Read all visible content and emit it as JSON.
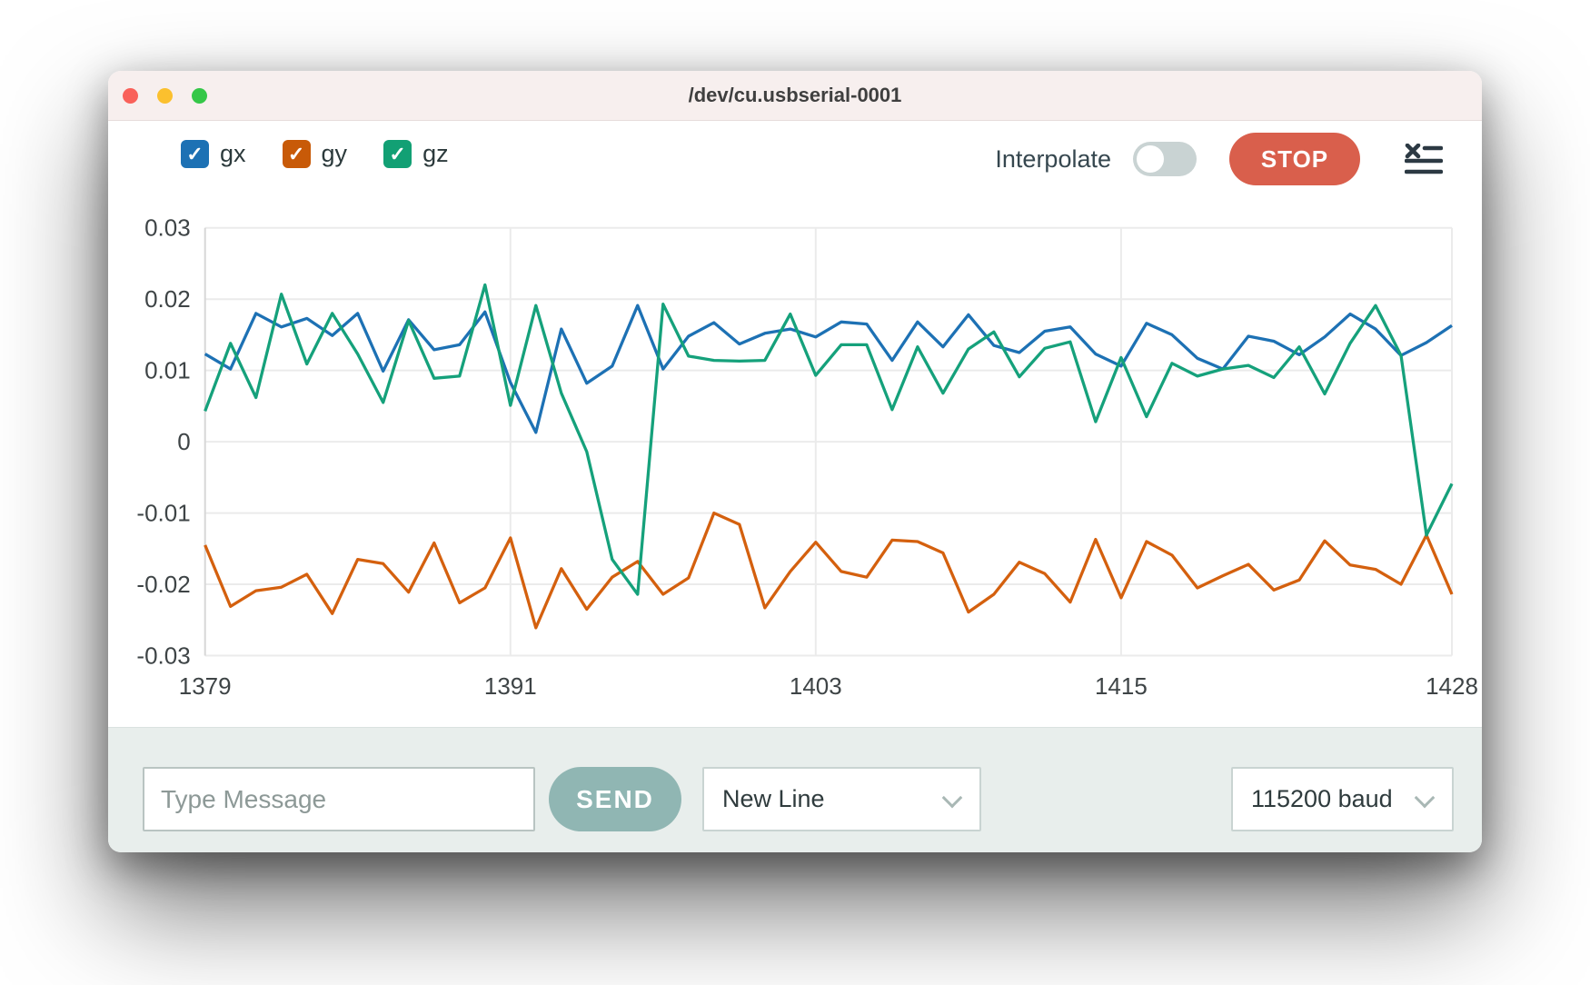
{
  "window": {
    "title": "/dev/cu.usbserial-0001",
    "traffic_lights": [
      {
        "name": "close",
        "color": "#f9615a"
      },
      {
        "name": "minimize",
        "color": "#fbc02e"
      },
      {
        "name": "zoom",
        "color": "#35c748"
      }
    ],
    "titlebar_color": "#f7efee"
  },
  "icons": {
    "check": "✓"
  },
  "legend": {
    "items": [
      {
        "label": "gx",
        "checked": true,
        "color": "#1d71b4"
      },
      {
        "label": "gy",
        "checked": true,
        "color": "#c85a08"
      },
      {
        "label": "gz",
        "checked": true,
        "color": "#12a074"
      }
    ]
  },
  "controls": {
    "interpolate_label": "Interpolate",
    "interpolate_state": "off",
    "stop_label": "STOP"
  },
  "chart_data": {
    "type": "line",
    "title": "",
    "xlabel": "",
    "ylabel": "",
    "grid": true,
    "legend_position": "top-left",
    "ylim": [
      -0.03,
      0.03
    ],
    "xlim": [
      1379,
      1428
    ],
    "ytick_labels": [
      "0.03",
      "0.02",
      "0.01",
      "0",
      "-0.01",
      "-0.02",
      "-0.03"
    ],
    "yticks": [
      0.03,
      0.02,
      0.01,
      0,
      -0.01,
      -0.02,
      -0.03
    ],
    "xticks": [
      1379,
      1391,
      1403,
      1415,
      1428
    ],
    "x": [
      1379,
      1380,
      1381,
      1382,
      1383,
      1384,
      1385,
      1386,
      1387,
      1388,
      1389,
      1390,
      1391,
      1392,
      1393,
      1394,
      1395,
      1396,
      1397,
      1398,
      1399,
      1400,
      1401,
      1402,
      1403,
      1404,
      1405,
      1406,
      1407,
      1408,
      1409,
      1410,
      1411,
      1412,
      1413,
      1414,
      1415,
      1416,
      1417,
      1418,
      1419,
      1420,
      1421,
      1422,
      1423,
      1424,
      1425,
      1426,
      1427,
      1428
    ],
    "series": [
      {
        "name": "gx",
        "color": "#1d71b4",
        "values": [
          0.0123,
          0.0102,
          0.018,
          0.0161,
          0.0173,
          0.0149,
          0.018,
          0.0099,
          0.0171,
          0.0129,
          0.0136,
          0.0182,
          0.0083,
          0.0013,
          0.0158,
          0.0082,
          0.0106,
          0.0191,
          0.0102,
          0.0148,
          0.0167,
          0.0137,
          0.0152,
          0.0158,
          0.0147,
          0.0168,
          0.0165,
          0.0114,
          0.0168,
          0.0133,
          0.0178,
          0.0135,
          0.0125,
          0.0155,
          0.0161,
          0.0123,
          0.0106,
          0.0166,
          0.015,
          0.0117,
          0.0102,
          0.0148,
          0.0141,
          0.0122,
          0.0147,
          0.0179,
          0.0158,
          0.0121,
          0.0139,
          0.0163
        ]
      },
      {
        "name": "gy",
        "color": "#d4600e",
        "values": [
          -0.0145,
          -0.0231,
          -0.0209,
          -0.0204,
          -0.0186,
          -0.0241,
          -0.0165,
          -0.0171,
          -0.0211,
          -0.0142,
          -0.0226,
          -0.0205,
          -0.0135,
          -0.0261,
          -0.0178,
          -0.0235,
          -0.019,
          -0.0168,
          -0.0214,
          -0.0191,
          -0.01,
          -0.0116,
          -0.0233,
          -0.0182,
          -0.0141,
          -0.0182,
          -0.019,
          -0.0138,
          -0.014,
          -0.0156,
          -0.0239,
          -0.0214,
          -0.0169,
          -0.0185,
          -0.0225,
          -0.0137,
          -0.0219,
          -0.014,
          -0.0159,
          -0.0205,
          -0.0188,
          -0.0172,
          -0.0208,
          -0.0194,
          -0.0139,
          -0.0173,
          -0.0179,
          -0.02,
          -0.0131,
          -0.0214
        ]
      },
      {
        "name": "gz",
        "color": "#15a17b",
        "values": [
          0.0043,
          0.0138,
          0.0062,
          0.0207,
          0.0109,
          0.018,
          0.0123,
          0.0055,
          0.017,
          0.0089,
          0.0092,
          0.022,
          0.0051,
          0.0191,
          0.0068,
          -0.0014,
          -0.0165,
          -0.0214,
          0.0193,
          0.012,
          0.0114,
          0.0113,
          0.0114,
          0.0179,
          0.0093,
          0.0136,
          0.0136,
          0.0045,
          0.0133,
          0.0068,
          0.013,
          0.0154,
          0.0091,
          0.0131,
          0.014,
          0.0028,
          0.0118,
          0.0035,
          0.011,
          0.0092,
          0.0102,
          0.0107,
          0.009,
          0.0133,
          0.0067,
          0.0138,
          0.0191,
          0.0121,
          -0.0131,
          -0.0059
        ]
      }
    ]
  },
  "footer": {
    "message_placeholder": "Type Message",
    "send_label": "SEND",
    "line_ending_value": "New Line",
    "baud_value": "115200 baud"
  }
}
